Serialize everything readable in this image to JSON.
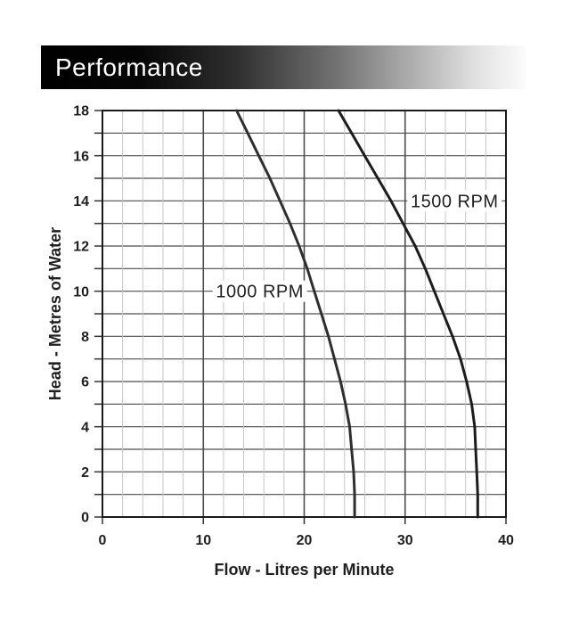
{
  "banner": {
    "title": "Performance"
  },
  "chart_data": {
    "type": "line",
    "title": "Performance",
    "xlabel": "Flow - Litres per Minute",
    "ylabel": "Head - Metres of Water",
    "xlim": [
      0,
      40
    ],
    "ylim": [
      0,
      18
    ],
    "x_tick_labels": [
      "0",
      "10",
      "20",
      "30",
      "40"
    ],
    "x_tick_values": [
      0,
      10,
      20,
      30,
      40
    ],
    "x_minor_grid_step": 2,
    "y_grid_step": 1,
    "y_tick_label_step": 2,
    "y_tick_labels": [
      "0",
      "2",
      "4",
      "6",
      "8",
      "10",
      "12",
      "14",
      "16",
      "18"
    ],
    "grid": "on",
    "legend_position": "inline-labels",
    "series": [
      {
        "name": "1000 RPM",
        "label": {
          "text": "1000 RPM",
          "flow": 15.6,
          "head": 10
        },
        "points_flow_head": [
          [
            13.3,
            18
          ],
          [
            14.4,
            17
          ],
          [
            15.5,
            16
          ],
          [
            16.6,
            15
          ],
          [
            17.6,
            14
          ],
          [
            18.6,
            13
          ],
          [
            19.5,
            12
          ],
          [
            20.3,
            11
          ],
          [
            21.0,
            10
          ],
          [
            21.7,
            9
          ],
          [
            22.4,
            8
          ],
          [
            23.0,
            7
          ],
          [
            23.6,
            6
          ],
          [
            24.1,
            5
          ],
          [
            24.5,
            4
          ],
          [
            24.7,
            3
          ],
          [
            24.9,
            2
          ],
          [
            25.0,
            1
          ],
          [
            25.0,
            0
          ]
        ],
        "color": "#2e2e2e"
      },
      {
        "name": "1500 RPM",
        "label": {
          "text": "1500 RPM",
          "flow": 34.9,
          "head": 14
        },
        "points_flow_head": [
          [
            23.4,
            18
          ],
          [
            24.7,
            17
          ],
          [
            26.0,
            16
          ],
          [
            27.3,
            15
          ],
          [
            28.6,
            14
          ],
          [
            29.8,
            13
          ],
          [
            31.0,
            12
          ],
          [
            32.0,
            11
          ],
          [
            32.9,
            10
          ],
          [
            33.8,
            9
          ],
          [
            34.7,
            8
          ],
          [
            35.5,
            7
          ],
          [
            36.1,
            6
          ],
          [
            36.6,
            5
          ],
          [
            36.9,
            4
          ],
          [
            37.0,
            3
          ],
          [
            37.1,
            2
          ],
          [
            37.2,
            1
          ],
          [
            37.2,
            0
          ]
        ],
        "color": "#1c1c1c"
      }
    ],
    "colors": {
      "h_grid": "#4d4d4d",
      "v_grid_minor": "#c6c6c6",
      "v_grid_major": "#4d4d4d",
      "border": "#1a1a1a",
      "tick": "#333333",
      "text": "#1f1f1f",
      "label_bg": "#ffffff"
    }
  }
}
